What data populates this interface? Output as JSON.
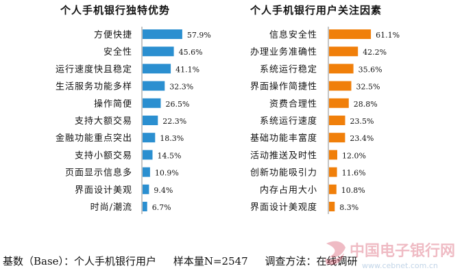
{
  "chart_data": [
    {
      "type": "bar",
      "orientation": "horizontal",
      "title": "个人手机银行独特优势",
      "categories": [
        "方便快捷",
        "安全性",
        "运行速度快且稳定",
        "生活服务功能多样",
        "操作简便",
        "支持大额交易",
        "金融功能重点突出",
        "支持小额交易",
        "页面显示信息多",
        "界面设计美观",
        "时尚/潮流"
      ],
      "values": [
        57.9,
        45.6,
        41.1,
        32.3,
        26.5,
        22.3,
        18.3,
        14.5,
        10.9,
        9.4,
        6.7
      ],
      "labels": [
        "57.9%",
        "45.6%",
        "41.1%",
        "32.3%",
        "26.5%",
        "22.3%",
        "18.3%",
        "14.5%",
        "10.9%",
        "9.4%",
        "6.7%"
      ],
      "color": "#2b8fd0",
      "grid": false
    },
    {
      "type": "bar",
      "orientation": "horizontal",
      "title": "个人手机银行用户关注因素",
      "categories": [
        "信息安全性",
        "办理业务准确性",
        "系统运行稳定",
        "界面操作简捷性",
        "资费合理性",
        "系统运行速度",
        "基础功能丰富度",
        "活动推送及时性",
        "创新功能吸引力",
        "内存占用大小",
        "界面设计美观度"
      ],
      "values": [
        61.1,
        42.2,
        35.6,
        32.5,
        28.8,
        23.5,
        23.4,
        12.0,
        11.6,
        10.8,
        8.3
      ],
      "labels": [
        "61.1%",
        "42.2%",
        "35.6%",
        "32.5%",
        "28.8%",
        "23.5%",
        "23.4%",
        "12.0%",
        "11.6%",
        "10.8%",
        "8.3%"
      ],
      "color": "#f07f0a",
      "grid": false
    }
  ],
  "footer": {
    "base": "基数（Base）：个人手机银行用户",
    "sample": "样本量N=2547",
    "method": "调查方法：在线调研"
  },
  "watermark": {
    "text": "中国电子银行网",
    "url": "www.cebnet.com.cn"
  }
}
